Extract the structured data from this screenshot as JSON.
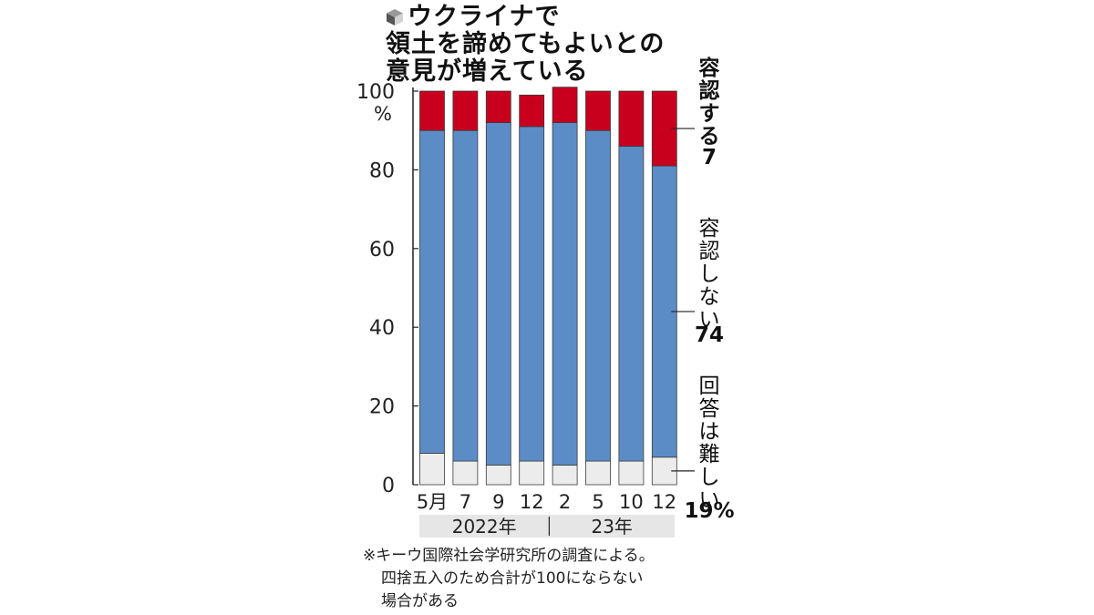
{
  "title_lines": [
    "ウクライナで",
    "領土を諦めてもよいとの",
    "意見が増えている"
  ],
  "chart_data": {
    "type": "bar",
    "stacked": true,
    "categories": [
      "5月",
      "7",
      "9",
      "12",
      "2",
      "5",
      "10",
      "12"
    ],
    "year_groups": [
      {
        "label": "2022年",
        "span": 4
      },
      {
        "label": "23年",
        "span": 4
      }
    ],
    "series": [
      {
        "name": "回答は難しい",
        "values": [
          8,
          6,
          5,
          6,
          5,
          6,
          6,
          7
        ],
        "color": "#ececec"
      },
      {
        "name": "容認しない",
        "values": [
          82,
          84,
          87,
          85,
          87,
          84,
          80,
          74
        ],
        "color": "#5b8cc6"
      },
      {
        "name": "容認する",
        "values": [
          10,
          10,
          8,
          8,
          9,
          10,
          14,
          19
        ],
        "color": "#c8001e"
      }
    ],
    "series_label_values": [
      "7",
      "74",
      "19%"
    ],
    "y_ticks": [
      "0",
      "20",
      "40",
      "60",
      "80",
      "100"
    ],
    "y_unit": "%",
    "ylim": [
      0,
      100
    ],
    "grid": false,
    "legend": "right, direct labels"
  },
  "note": {
    "lines": [
      "※キーウ国際社会学研究所の調査による。",
      "四捨五入のため合計が100にならない",
      "場合がある"
    ]
  }
}
